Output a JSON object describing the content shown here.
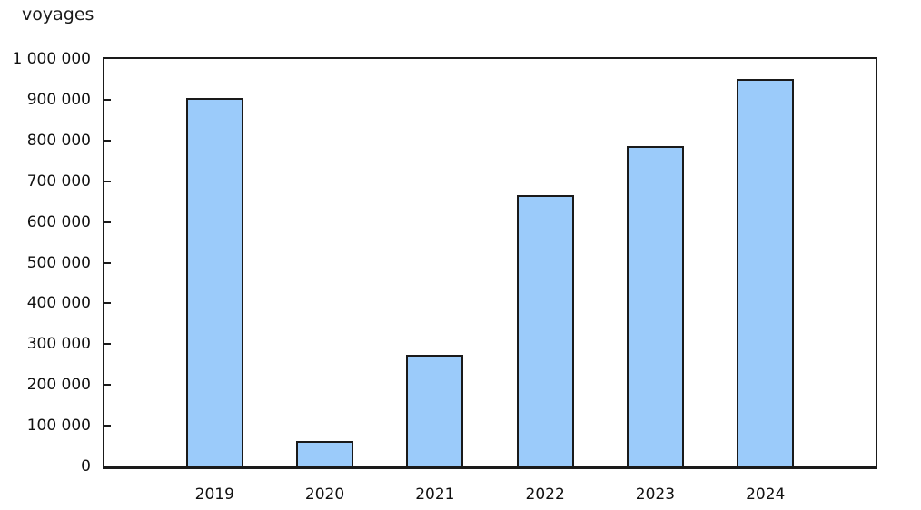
{
  "chart_data": {
    "type": "bar",
    "title": "voyages",
    "ylabel": "voyages",
    "xlabel": "",
    "categories": [
      "2019",
      "2020",
      "2021",
      "2022",
      "2023",
      "2024"
    ],
    "values": [
      905000,
      62000,
      274000,
      667000,
      787000,
      952000
    ],
    "ylim": [
      0,
      1000000
    ],
    "ytick_step": 100000,
    "ytick_labels": [
      "0",
      "100 000",
      "200 000",
      "300 000",
      "400 000",
      "500 000",
      "600 000",
      "700 000",
      "800 000",
      "900 000",
      "1 000 000"
    ],
    "grid": false,
    "legend": null,
    "bar_fill": "#9BCBFA",
    "bar_border": "#1A1A1A"
  },
  "colors": {
    "background": "#FFFFFF",
    "axis": "#1A1A1A",
    "text": "#111111"
  }
}
